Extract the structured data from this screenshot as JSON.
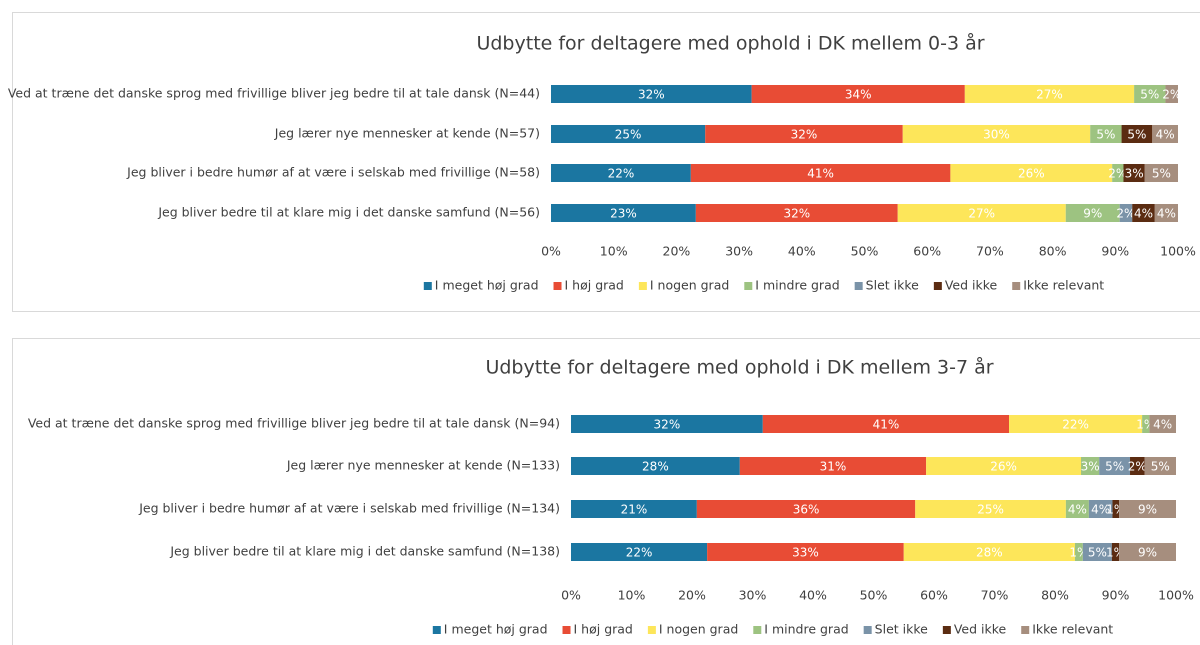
{
  "chart_data": [
    {
      "type": "bar",
      "orientation": "horizontal",
      "stacked": true,
      "title": "Udbytte for deltagere med ophold i DK mellem 0-3 år",
      "categories": [
        "Ved at træne det danske sprog med frivillige bliver jeg bedre til at tale dansk (N=44)",
        "Jeg lærer nye mennesker at kende (N=57)",
        "Jeg bliver i bedre humør af at være i selskab med frivillige (N=58)",
        "Jeg bliver bedre til at klare mig i det danske samfund (N=56)"
      ],
      "series": [
        {
          "name": "I meget høj grad",
          "color": "#1b76a1",
          "values": [
            32,
            24.6,
            22.3,
            23.1
          ],
          "value_labels": [
            "32%",
            "25%",
            "22%",
            "23%"
          ]
        },
        {
          "name": "I høj grad",
          "color": "#e84c35",
          "values": [
            34,
            31.5,
            41.4,
            32.2
          ],
          "value_labels": [
            "34%",
            "32%",
            "41%",
            "32%"
          ]
        },
        {
          "name": "I nogen grad",
          "color": "#fde65a",
          "values": [
            27,
            29.9,
            25.8,
            26.8
          ],
          "value_labels": [
            "27%",
            "30%",
            "26%",
            "27%"
          ]
        },
        {
          "name": "I mindre grad",
          "color": "#9dc381",
          "values": [
            5,
            5,
            1.8,
            8.6
          ],
          "value_labels": [
            "5%",
            "5%",
            "2%",
            "9%"
          ]
        },
        {
          "name": "Slet ikke",
          "color": "#7a93a8",
          "values": [
            null,
            null,
            null,
            2
          ],
          "value_labels": [
            null,
            null,
            null,
            "2%"
          ]
        },
        {
          "name": "Ved ikke",
          "color": "#5b2c12",
          "values": [
            null,
            4.9,
            3.4,
            3.6
          ],
          "value_labels": [
            null,
            "5%",
            "3%",
            "4%"
          ]
        },
        {
          "name": "Ikke relevant",
          "color": "#a68e7e",
          "values": [
            2,
            4.1,
            5.3,
            3.7
          ],
          "value_labels": [
            "2%",
            "4%",
            "5%",
            "4%"
          ]
        }
      ],
      "xlim": [
        0,
        100
      ],
      "xticks": [
        {
          "value": 0,
          "label": "0%"
        },
        {
          "value": 10,
          "label": "10%"
        },
        {
          "value": 20,
          "label": "20%"
        },
        {
          "value": 30,
          "label": "30%"
        },
        {
          "value": 40,
          "label": "40%"
        },
        {
          "value": 50,
          "label": "50%"
        },
        {
          "value": 60,
          "label": "60%"
        },
        {
          "value": 70,
          "label": "70%"
        },
        {
          "value": 80,
          "label": "80%"
        },
        {
          "value": 90,
          "label": "90%"
        },
        {
          "value": 100,
          "label": "100%"
        }
      ],
      "legend": "bottom"
    },
    {
      "type": "bar",
      "orientation": "horizontal",
      "stacked": true,
      "title": "Udbytte for deltagere med ophold i DK mellem 3-7 år",
      "categories": [
        "Ved at træne det danske sprog med frivillige bliver jeg bedre til at tale dansk (N=94)",
        "Jeg lærer nye mennesker at kende (N=133)",
        "Jeg bliver i bedre humør af at være i selskab med frivillige (N=134)",
        "Jeg bliver bedre til at klare mig i det danske samfund (N=138)"
      ],
      "series": [
        {
          "name": "I meget høj grad",
          "color": "#1b76a1",
          "values": [
            31.7,
            27.9,
            20.8,
            22.5
          ],
          "value_labels": [
            "32%",
            "28%",
            "21%",
            "22%"
          ]
        },
        {
          "name": "I høj grad",
          "color": "#e84c35",
          "values": [
            40.7,
            30.8,
            36.1,
            32.5
          ],
          "value_labels": [
            "41%",
            "31%",
            "36%",
            "33%"
          ]
        },
        {
          "name": "I nogen grad",
          "color": "#fde65a",
          "values": [
            22,
            25.6,
            24.9,
            28.3
          ],
          "value_labels": [
            "22%",
            "26%",
            "25%",
            "28%"
          ]
        },
        {
          "name": "I mindre grad",
          "color": "#9dc381",
          "values": [
            1.2,
            3,
            3.8,
            1.3
          ],
          "value_labels": [
            "1%",
            "3%",
            "4%",
            "1%"
          ]
        },
        {
          "name": "Slet ikke",
          "color": "#7a93a8",
          "values": [
            null,
            5.1,
            3.9,
            4.8
          ],
          "value_labels": [
            null,
            "5%",
            "4%",
            "5%"
          ]
        },
        {
          "name": "Ved ikke",
          "color": "#5b2c12",
          "values": [
            null,
            2.4,
            1.1,
            1.2
          ],
          "value_labels": [
            null,
            "2%",
            "1%",
            "1%"
          ]
        },
        {
          "name": "Ikke relevant",
          "color": "#a68e7e",
          "values": [
            4.4,
            5.2,
            9.4,
            9.4
          ],
          "value_labels": [
            "4%",
            "5%",
            "9%",
            "9%"
          ]
        }
      ],
      "xlim": [
        0,
        100
      ],
      "xticks": [
        {
          "value": 0,
          "label": "0%"
        },
        {
          "value": 10,
          "label": "10%"
        },
        {
          "value": 20,
          "label": "20%"
        },
        {
          "value": 30,
          "label": "30%"
        },
        {
          "value": 40,
          "label": "40%"
        },
        {
          "value": 50,
          "label": "50%"
        },
        {
          "value": 60,
          "label": "60%"
        },
        {
          "value": 70,
          "label": "70%"
        },
        {
          "value": 80,
          "label": "80%"
        },
        {
          "value": 90,
          "label": "90%"
        },
        {
          "value": 100,
          "label": "100%"
        }
      ],
      "legend": "bottom"
    }
  ]
}
